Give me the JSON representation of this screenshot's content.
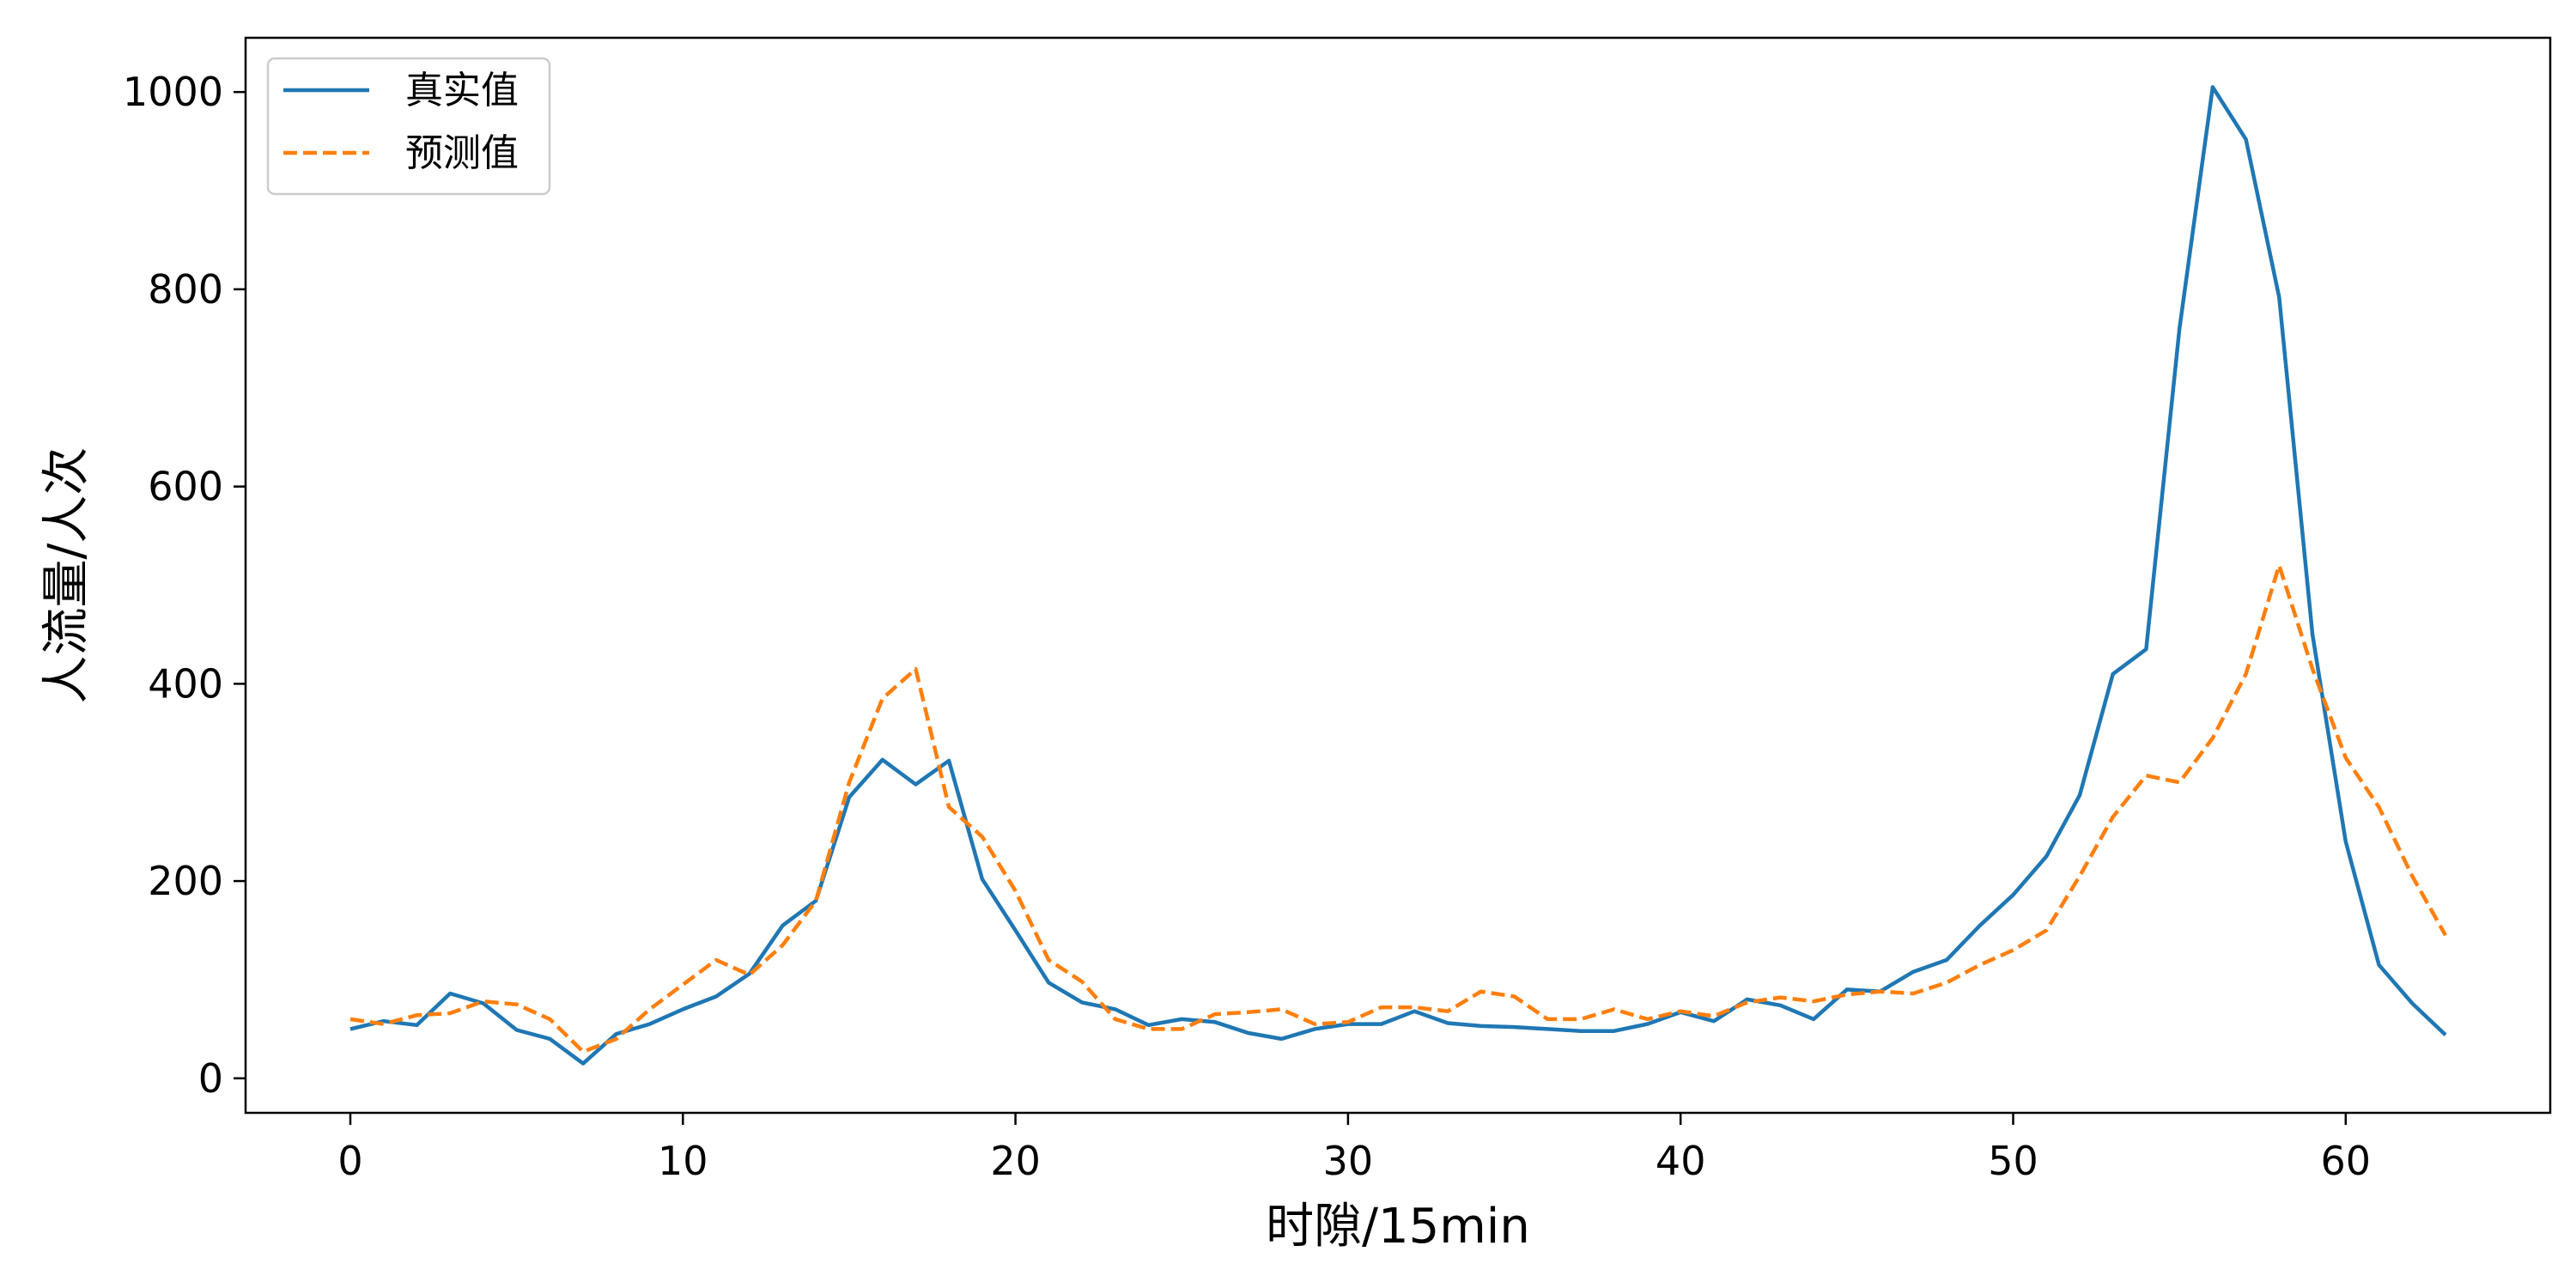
{
  "chart_data": {
    "type": "line",
    "title": "",
    "xlabel": "时隙/15min",
    "ylabel": "人流量/人次",
    "xlim": [
      -3.15,
      66.15
    ],
    "ylim": [
      -35,
      1055
    ],
    "xticks": [
      0,
      10,
      20,
      30,
      40,
      50,
      60
    ],
    "yticks": [
      0,
      200,
      400,
      600,
      800,
      1000
    ],
    "grid": false,
    "legend_position": "top-left",
    "x": [
      0,
      1,
      2,
      3,
      4,
      5,
      6,
      7,
      8,
      9,
      10,
      11,
      12,
      13,
      14,
      15,
      16,
      17,
      18,
      19,
      20,
      21,
      22,
      23,
      24,
      25,
      26,
      27,
      28,
      29,
      30,
      31,
      32,
      33,
      34,
      35,
      36,
      37,
      38,
      39,
      40,
      41,
      42,
      43,
      44,
      45,
      46,
      47,
      48,
      49,
      50,
      51,
      52,
      53,
      54,
      55,
      56,
      57,
      58,
      59,
      60,
      61,
      62,
      63
    ],
    "series": [
      {
        "name": "真实值",
        "color": "#1f77b4",
        "style": "solid",
        "values": [
          50,
          58,
          54,
          86,
          76,
          49,
          40,
          15,
          45,
          55,
          70,
          83,
          106,
          155,
          180,
          285,
          323,
          298,
          322,
          202,
          150,
          97,
          77,
          70,
          54,
          60,
          57,
          46,
          40,
          50,
          55,
          55,
          68,
          56,
          53,
          52,
          50,
          48,
          48,
          55,
          67,
          58,
          80,
          74,
          60,
          90,
          88,
          108,
          120,
          155,
          186,
          225,
          287,
          410,
          435,
          760,
          1005,
          952,
          792,
          450,
          240,
          115,
          76,
          44
        ]
      },
      {
        "name": "预测值",
        "color": "#ff7f0e",
        "style": "dashed",
        "values": [
          60,
          55,
          64,
          66,
          78,
          75,
          60,
          27,
          40,
          70,
          95,
          120,
          105,
          135,
          180,
          300,
          385,
          415,
          275,
          245,
          190,
          120,
          98,
          60,
          50,
          50,
          65,
          67,
          70,
          55,
          57,
          72,
          72,
          68,
          88,
          83,
          60,
          60,
          70,
          60,
          68,
          63,
          77,
          82,
          78,
          85,
          88,
          86,
          97,
          115,
          130,
          150,
          205,
          265,
          307,
          300,
          345,
          410,
          520,
          415,
          325,
          275,
          205,
          145
        ]
      }
    ]
  }
}
